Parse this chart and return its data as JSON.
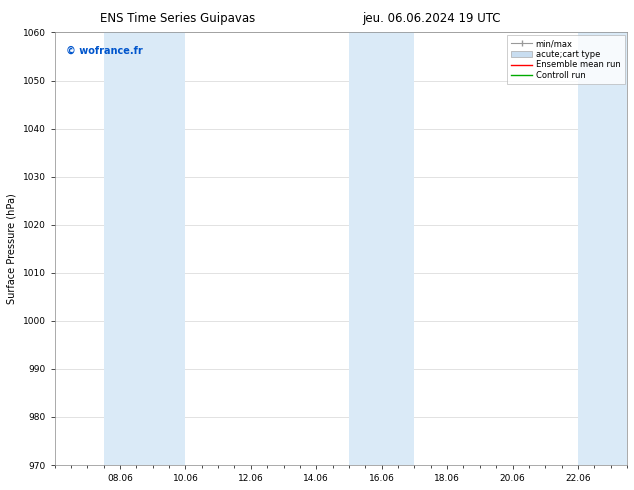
{
  "title_left": "ENS Time Series Guipavas",
  "title_right": "jeu. 06.06.2024 19 UTC",
  "ylabel": "Surface Pressure (hPa)",
  "ylim": [
    970,
    1060
  ],
  "yticks": [
    970,
    980,
    990,
    1000,
    1010,
    1020,
    1030,
    1040,
    1050,
    1060
  ],
  "xtick_labels": [
    "08.06",
    "10.06",
    "12.06",
    "14.06",
    "16.06",
    "18.06",
    "20.06",
    "22.06"
  ],
  "xtick_positions": [
    2,
    4,
    6,
    8,
    10,
    12,
    14,
    16
  ],
  "xlim": [
    0,
    17.5
  ],
  "watermark": "© wofrance.fr",
  "watermark_color": "#0055cc",
  "shaded_color": "#daeaf7",
  "bg_color": "#ffffff",
  "plot_bg_color": "#ffffff",
  "title_fontsize": 8.5,
  "label_fontsize": 7,
  "tick_fontsize": 6.5,
  "watermark_fontsize": 7,
  "legend_fontsize": 6
}
